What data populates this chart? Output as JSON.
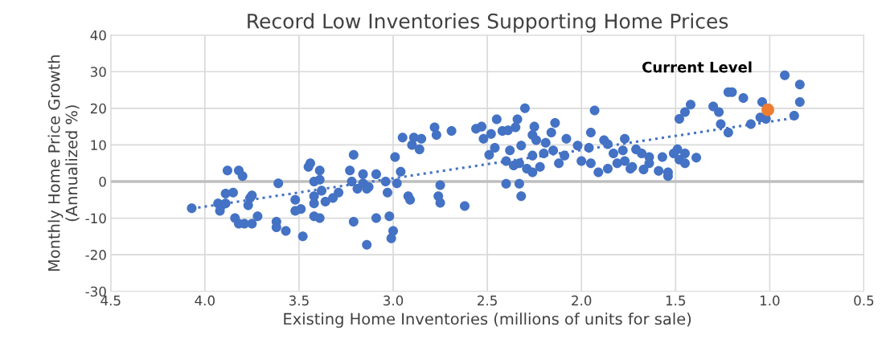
{
  "chart_data": {
    "type": "scatter",
    "title": "Record Low Inventories Supporting Home Prices",
    "xlabel": "Existing Home Inventories (millions of units for sale)",
    "ylabel": "Monthly Home Price Growth\n(Annualized %)",
    "xlim": [
      4.5,
      0.5
    ],
    "xticks": [
      4.5,
      {
        "value": 4.0,
        "label": "4.0"
      },
      3.5,
      {
        "value": 3.0,
        "label": "3.0"
      },
      2.5,
      {
        "value": 2.0,
        "label": "2.0"
      },
      1.5,
      {
        "value": 1.0,
        "label": "1.0"
      },
      0.5
    ],
    "ylim": [
      -30,
      40
    ],
    "yticks": [
      -30,
      -20,
      -10,
      0,
      10,
      20,
      30,
      40
    ],
    "grid": true,
    "marker": "circle",
    "ref_lines": [
      {
        "axis": "y",
        "value": 0,
        "color": "#bfbfbf"
      }
    ],
    "annotations": [
      "Current Level"
    ],
    "series": [
      {
        "color": "#4472c4",
        "x": [
          4.07,
          3.93,
          3.91,
          3.89,
          3.92,
          3.89,
          3.85,
          3.88,
          3.82,
          3.8,
          3.84,
          3.82,
          3.79,
          3.75,
          3.72,
          3.76,
          3.77,
          3.75,
          3.61,
          3.62,
          3.62,
          3.57,
          3.48,
          3.52,
          3.52,
          3.49,
          3.45,
          3.44,
          3.42,
          3.39,
          3.39,
          3.42,
          3.42,
          3.39,
          3.42,
          3.38,
          3.36,
          3.32,
          3.29,
          3.23,
          3.21,
          3.22,
          3.19,
          3.21,
          3.16,
          3.16,
          3.14,
          3.14,
          3.13,
          3.09,
          3.09,
          3.04,
          3.03,
          3.01,
          3.0,
          3.02,
          2.99,
          2.98,
          2.96,
          2.95,
          2.89,
          2.85,
          2.9,
          2.86,
          2.78,
          2.77,
          2.69,
          2.92,
          2.91,
          2.76,
          2.75,
          2.75,
          2.62,
          2.56,
          2.53,
          2.45,
          2.3,
          1.93,
          2.4,
          2.33,
          2.32,
          2.49,
          2.46,
          2.52,
          2.48,
          2.42,
          2.39,
          2.35,
          2.34,
          2.4,
          2.36,
          2.33,
          2.38,
          2.32,
          2.25,
          2.26,
          2.24,
          2.14,
          2.16,
          2.19,
          2.29,
          2.26,
          2.22,
          2.26,
          2.2,
          2.15,
          2.12,
          2.08,
          2.09,
          2.02,
          2.0,
          1.96,
          1.95,
          1.91,
          1.88,
          1.86,
          1.83,
          1.81,
          1.77,
          1.78,
          1.74,
          1.71,
          1.95,
          1.86,
          0.92,
          0.84,
          0.84,
          0.87,
          1.04,
          1.05,
          1.02,
          1.1,
          1.14,
          1.22,
          1.2,
          1.27,
          1.3,
          1.26,
          1.22,
          1.42,
          1.45,
          1.48,
          1.68,
          1.64,
          1.64,
          1.73,
          1.67,
          1.59,
          1.54,
          1.54,
          1.57,
          1.49,
          1.51,
          1.45,
          1.48,
          1.45,
          1.39,
          1.77
        ],
        "values": [
          -7.3,
          -6,
          -6.5,
          -6,
          -8,
          -3.3,
          -3,
          3,
          3,
          1.5,
          -10,
          -11.5,
          -11.5,
          -11.5,
          -9.5,
          -4.5,
          -6.5,
          -3.8,
          -0.5,
          -11,
          -12.5,
          -13.5,
          -15,
          -5,
          -8,
          -7.5,
          4,
          5,
          0,
          0.5,
          3,
          -6,
          -9.5,
          -10,
          -4,
          -2.5,
          -5.5,
          -4.5,
          -3,
          3,
          7.3,
          0,
          -2,
          -11,
          2,
          -0.5,
          -17.3,
          -2,
          -1.5,
          -10,
          2,
          0,
          -3,
          -15.5,
          -13.5,
          -9.5,
          6.7,
          -0.5,
          2.7,
          12,
          12,
          11.7,
          10,
          8.8,
          14.8,
          12.7,
          13.8,
          -4,
          -5,
          -4,
          -5.8,
          -1,
          -6.7,
          14.4,
          15,
          17,
          20,
          19.4,
          -0.6,
          -0.6,
          -4,
          7.3,
          9.2,
          11.7,
          13,
          13.8,
          14,
          14.8,
          17,
          5.6,
          4.4,
          5,
          8.5,
          9.8,
          15,
          12.7,
          11.3,
          16,
          13.4,
          10.6,
          3.5,
          2.5,
          4,
          7.1,
          7.7,
          8.5,
          5,
          11.7,
          7.1,
          9.8,
          5.6,
          9.2,
          5,
          2.5,
          11.3,
          3.5,
          7.7,
          5,
          11.7,
          8.5,
          3.5,
          8.8,
          13.4,
          10.2,
          29,
          26.5,
          21.7,
          18,
          21.7,
          17.5,
          17.1,
          15.7,
          22.8,
          24.4,
          24.4,
          19,
          20.5,
          15.7,
          13.4,
          21,
          19,
          17.1,
          7.7,
          6.7,
          5,
          4,
          3.3,
          2.9,
          2.5,
          1.5,
          6.7,
          8.8,
          7.7,
          7.7,
          6,
          5,
          6.5,
          5.6
        ]
      },
      {
        "type": "scatter",
        "color": "#ed7d31",
        "x": [
          1.01
        ],
        "values": [
          19.6
        ]
      },
      {
        "type": "line",
        "color": "#4472c4",
        "line_style": "dotted",
        "marker": "none",
        "x": [
          4.07,
          0.85
        ],
        "values": [
          -7.4,
          17.5
        ]
      }
    ]
  }
}
